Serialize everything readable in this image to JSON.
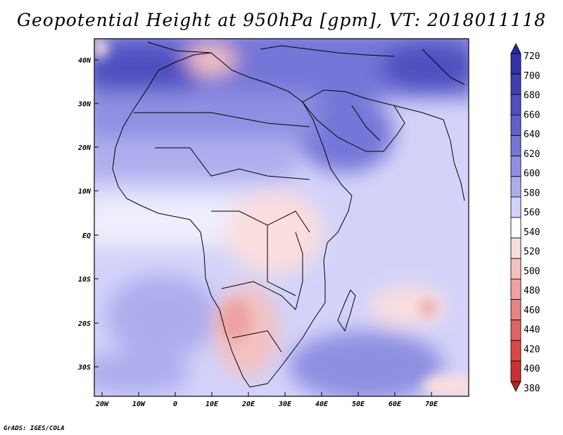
{
  "title": "Geopotential Height at 950hPa [gpm], VT: 2018011118",
  "footer": "GrADS: IGES/COLA",
  "map": {
    "lat_labels": [
      "40N",
      "30N",
      "20N",
      "10N",
      "EQ",
      "10S",
      "20S",
      "30S"
    ],
    "lon_labels": [
      "20W",
      "10W",
      "0",
      "10E",
      "20E",
      "30E",
      "40E",
      "50E",
      "60E",
      "70E"
    ]
  },
  "colorbar": {
    "levels": [
      {
        "label": "720",
        "color": "#2a2a9c"
      },
      {
        "label": "700",
        "color": "#3232a8"
      },
      {
        "label": "680",
        "color": "#3f3fb4"
      },
      {
        "label": "660",
        "color": "#4f4fc0"
      },
      {
        "label": "640",
        "color": "#6060cc"
      },
      {
        "label": "620",
        "color": "#7676d8"
      },
      {
        "label": "600",
        "color": "#8f8fe2"
      },
      {
        "label": "580",
        "color": "#adadee"
      },
      {
        "label": "560",
        "color": "#d3d3fa"
      },
      {
        "label": "540",
        "color": "#ffffff"
      },
      {
        "label": "520",
        "color": "#fbdede"
      },
      {
        "label": "500",
        "color": "#f4c0c0"
      },
      {
        "label": "480",
        "color": "#eea2a2"
      },
      {
        "label": "460",
        "color": "#e88484"
      },
      {
        "label": "440",
        "color": "#e06464"
      },
      {
        "label": "420",
        "color": "#d84848"
      },
      {
        "label": "400",
        "color": "#cc3030"
      },
      {
        "label": "380",
        "color": "#b82222"
      }
    ]
  }
}
